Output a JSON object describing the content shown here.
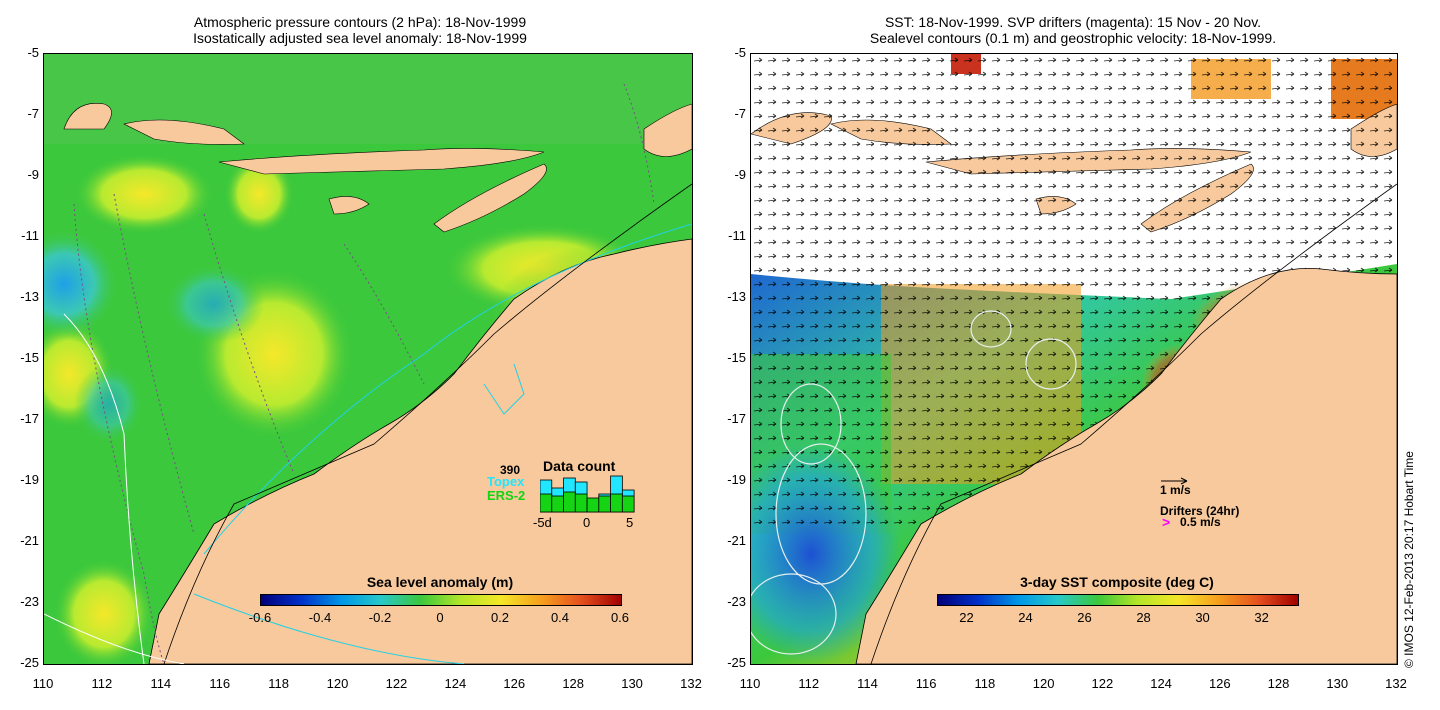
{
  "left_panel": {
    "title_line1": "Atmospheric pressure contours (2 hPa): 18-Nov-1999",
    "title_line2": "Isostatically adjusted sea level anomaly: 18-Nov-1999",
    "colorbar": {
      "title": "Sea level anomaly (m)",
      "ticks": [
        "-0.6",
        "-0.4",
        "-0.2",
        "0",
        "0.2",
        "0.4",
        "0.6"
      ]
    },
    "data_count": {
      "number": "390",
      "topex_label": "Topex",
      "ers_label": "ERS-2",
      "title": "Data count",
      "axis_labels": [
        "-5d",
        "0",
        "5"
      ],
      "topex_color": "#22e5ff",
      "ers_color": "#14d414",
      "topex_levels": [
        0.8,
        0.6,
        0.85,
        0.75,
        0.3,
        0.45,
        0.9,
        0.55
      ],
      "ers_levels": [
        0.45,
        0.4,
        0.5,
        0.45,
        0.35,
        0.4,
        0.45,
        0.4
      ]
    }
  },
  "right_panel": {
    "title_line1": "SST: 18-Nov-1999. SVP drifters (magenta): 15 Nov - 20 Nov.",
    "title_line2": "Sealevel contours (0.1 m) and geostrophic velocity: 18-Nov-1999.",
    "colorbar": {
      "title": "3-day SST composite (deg C)",
      "ticks": [
        "22",
        "24",
        "26",
        "28",
        "30",
        "32"
      ]
    },
    "velocity_legend": "1 m/s",
    "drifter_legend_title": "Drifters (24hr)",
    "drifter_legend_value": "0.5 m/s",
    "drifter_color": "#ff00ff"
  },
  "axes": {
    "y_labels": [
      "-5",
      "-7",
      "-9",
      "-11",
      "-13",
      "-15",
      "-17",
      "-19",
      "-21",
      "-23",
      "-25"
    ],
    "x_labels": [
      "110",
      "112",
      "114",
      "116",
      "118",
      "120",
      "122",
      "124",
      "126",
      "128",
      "130",
      "132"
    ]
  },
  "credit": "© IMOS 12-Feb-2013 20:17 Hobart Time",
  "colors": {
    "land": "#f7c99c",
    "sea_green": "#3cc83c",
    "sea_yellow": "#e6ee2e",
    "sea_cyan": "#3cc8c8",
    "sst_orange": "#f29a1e",
    "sst_red": "#b41e0a",
    "sst_blue": "#1e64d2"
  }
}
